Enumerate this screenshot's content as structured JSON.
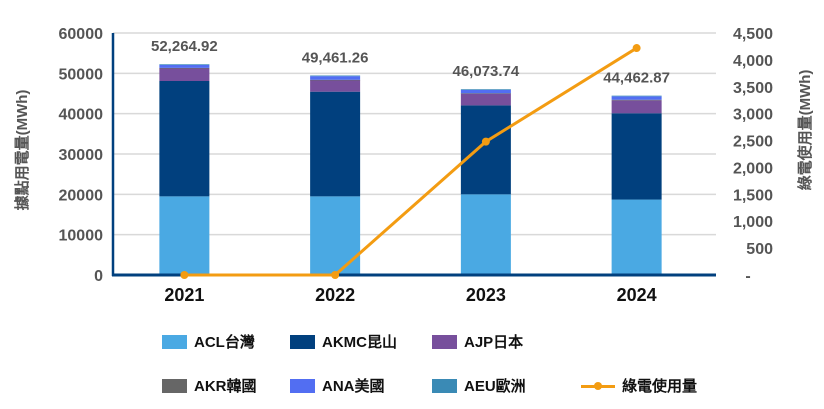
{
  "chart_data": {
    "type": "bar",
    "stacked": true,
    "categories": [
      "2021",
      "2022",
      "2023",
      "2024"
    ],
    "ylabel": "據點用電量(MWh)",
    "y2label": "綠電使用量(MWh)",
    "ylim": [
      0,
      60000
    ],
    "y2lim": [
      0,
      4500
    ],
    "yticks": [
      "0",
      "10000",
      "20000",
      "30000",
      "40000",
      "50000",
      "60000"
    ],
    "y2ticks": [
      "-",
      "500",
      "1,000",
      "1,500",
      "2,000",
      "2,500",
      "3,000",
      "3,500",
      "4,000",
      "4,500"
    ],
    "grid": true,
    "legend_position": "bottom",
    "totals": [
      "52,264.92",
      "49,461.26",
      "46,073.74",
      "44,462.87"
    ],
    "series": [
      {
        "name": "ACL台灣",
        "color": "#4aa9e3",
        "values": [
          19500,
          19500,
          20000,
          18700
        ]
      },
      {
        "name": "AKMC昆山",
        "color": "#01407e",
        "values": [
          28600,
          25950,
          22050,
          21400
        ]
      },
      {
        "name": "AJP日本",
        "color": "#774f9c",
        "values": [
          3150,
          2900,
          2950,
          3200
        ]
      },
      {
        "name": "AKR韓國",
        "color": "#666666",
        "values": [
          100,
          50,
          50,
          150
        ]
      },
      {
        "name": "ANA美國",
        "color": "#526ef2",
        "values": [
          750,
          900,
          850,
          850
        ]
      },
      {
        "name": "AEU歐洲",
        "color": "#3a8ab5",
        "values": [
          164.92,
          161.26,
          173.74,
          162.87
        ]
      }
    ],
    "line_series": {
      "name": "綠電使用量",
      "color": "#f39c12",
      "axis": "right",
      "values": [
        0,
        0,
        2480,
        4220
      ]
    }
  }
}
